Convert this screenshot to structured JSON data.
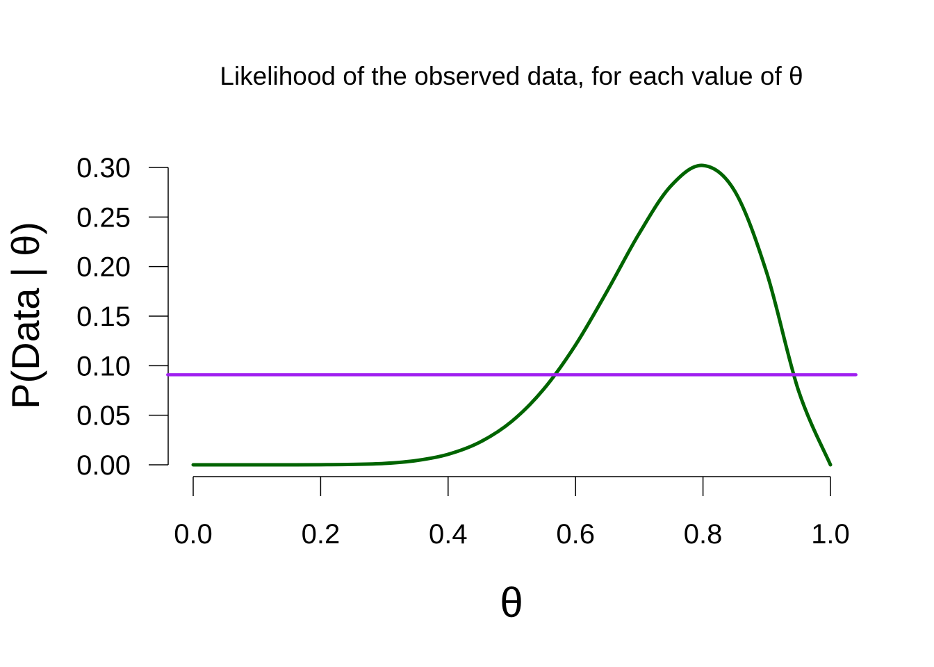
{
  "chart_data": {
    "type": "line",
    "title": "Likelihood of the observed data, for each value of θ",
    "xlabel": "θ",
    "ylabel": "P(Data | θ)",
    "xlim": [
      0,
      1
    ],
    "ylim": [
      0,
      0.3
    ],
    "x_ticks": [
      0,
      0.2,
      0.4,
      0.6,
      0.8,
      1
    ],
    "x_tick_labels": [
      "0.0",
      "0.2",
      "0.4",
      "0.6",
      "0.8",
      "1.0"
    ],
    "y_ticks": [
      0,
      0.05,
      0.1,
      0.15,
      0.2,
      0.25,
      0.3
    ],
    "y_tick_labels": [
      "0.00",
      "0.05",
      "0.10",
      "0.15",
      "0.20",
      "0.25",
      "0.30"
    ],
    "grid": false,
    "legend": "none",
    "series": [
      {
        "color": "#006400",
        "style": "solid",
        "x": [
          0,
          0.05,
          0.1,
          0.15,
          0.2,
          0.25,
          0.3,
          0.35,
          0.4,
          0.45,
          0.5,
          0.55,
          0.6,
          0.65,
          0.7,
          0.75,
          0.8,
          0.85,
          0.9,
          0.95,
          1
        ],
        "y": [
          0,
          0,
          0,
          0,
          0.0001,
          0.0004,
          0.0014,
          0.0043,
          0.0106,
          0.0229,
          0.0439,
          0.0763,
          0.1209,
          0.1757,
          0.2335,
          0.2816,
          0.302,
          0.2759,
          0.1937,
          0.0746,
          0
        ]
      },
      {
        "color": "#A020F0",
        "style": "solid",
        "x": [
          -0.04,
          1.04
        ],
        "y": [
          0.0909,
          0.0909
        ]
      }
    ]
  }
}
